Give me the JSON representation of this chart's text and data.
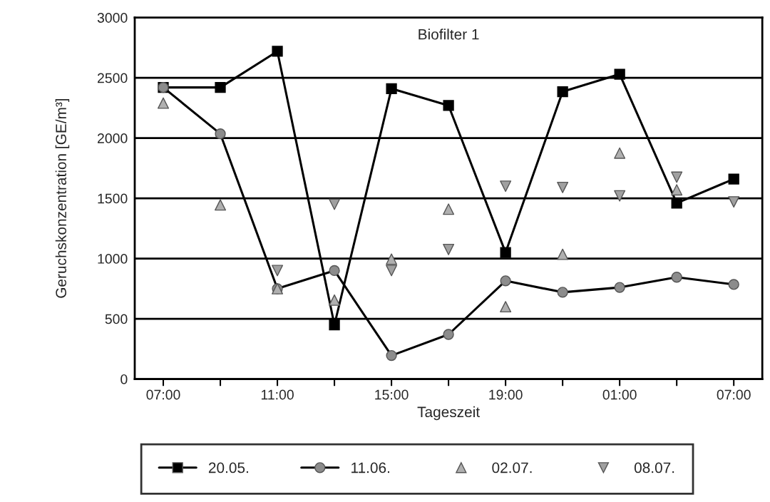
{
  "chart_data": {
    "type": "line",
    "title": "Biofilter 1",
    "xlabel": "Tageszeit",
    "ylabel": "Geruchskonzentration [GE/m³]",
    "categories": [
      "07:00",
      null,
      "11:00",
      null,
      "15:00",
      null,
      "19:00",
      null,
      "01:00",
      null,
      "07:00"
    ],
    "ylim": [
      0,
      3000
    ],
    "yticks": [
      0,
      500,
      1000,
      1500,
      2000,
      2500,
      3000
    ],
    "grid": "y",
    "legend": "bottom",
    "series": [
      {
        "name": "20.05.",
        "marker": "square",
        "color": "#000000",
        "values": [
          2420,
          2420,
          2720,
          450,
          2410,
          2270,
          1050,
          2385,
          2530,
          1460,
          1660
        ]
      },
      {
        "name": "11.06.",
        "marker": "circle",
        "color": "#8c8c8c",
        "values": [
          2420,
          2035,
          750,
          900,
          195,
          370,
          815,
          720,
          760,
          845,
          785
        ]
      },
      {
        "name": "02.07.",
        "type": "scatter",
        "marker": "triangle",
        "color": "#b0b0b0",
        "values": [
          2290,
          1445,
          750,
          655,
          995,
          1410,
          600,
          1035,
          1875,
          1570,
          null
        ]
      },
      {
        "name": "08.07.",
        "type": "scatter",
        "marker": "triangle_down",
        "color": "#a0a0a0",
        "values": [
          null,
          null,
          900,
          1450,
          900,
          1075,
          1600,
          1590,
          1520,
          1675,
          1470
        ]
      }
    ]
  }
}
